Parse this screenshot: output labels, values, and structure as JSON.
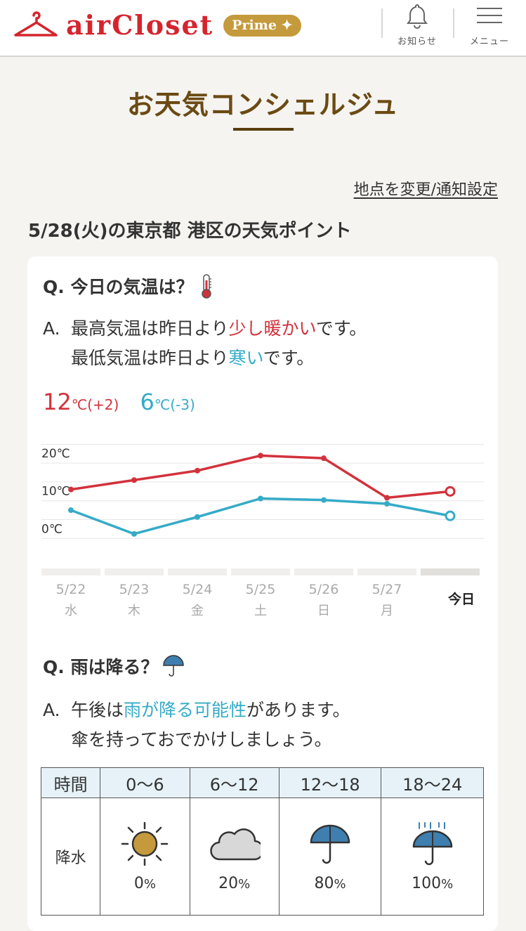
{
  "header": {
    "brand": "airCloset",
    "badge": "Prime",
    "notice_label": "お知らせ",
    "menu_label": "メニュー"
  },
  "page": {
    "title": "お天気コンシェルジュ",
    "change_link": "地点を変更/通知設定",
    "point_title": "5/28(火)の東京都 港区の天気ポイント"
  },
  "temperature": {
    "question": "Q. 今日の気温は？",
    "a_label": "A.",
    "line1_pre": "最高気温は昨日より",
    "line1_hl": "少し暖かい",
    "line1_post": "です。",
    "line2_pre": "最低気温は昨日より",
    "line2_hl": "寒い",
    "line2_post": "です。",
    "high_value": "12",
    "high_unit": "℃(+2)",
    "low_value": "6",
    "low_unit": "℃(-3)"
  },
  "chart_data": {
    "type": "line",
    "ylim": [
      -2,
      26
    ],
    "y_ticks": [
      "20℃",
      "10℃",
      "0℃"
    ],
    "y_tick_values": [
      20,
      10,
      0
    ],
    "categories": [
      {
        "date": "5/22",
        "day": "水"
      },
      {
        "date": "5/23",
        "day": "木"
      },
      {
        "date": "5/24",
        "day": "金"
      },
      {
        "date": "5/25",
        "day": "土"
      },
      {
        "date": "5/26",
        "day": "日"
      },
      {
        "date": "5/27",
        "day": "月"
      },
      {
        "date": "今日",
        "day": ""
      }
    ],
    "series": [
      {
        "name": "最高気温",
        "color": "#d2323c",
        "values": [
          13,
          15.5,
          18,
          22,
          21.3,
          10.8,
          12.5
        ]
      },
      {
        "name": "最低気温",
        "color": "#35abc7",
        "values": [
          7.5,
          1.2,
          5.7,
          10.6,
          10.2,
          9.2,
          6
        ]
      }
    ]
  },
  "rain": {
    "question": "Q. 雨は降る？",
    "a_label": "A.",
    "line1_pre": "午後は",
    "line1_hl": "雨が降る可能性",
    "line1_post": "があります。",
    "line2": "傘を持っておでかけしましょう。",
    "table": {
      "time_header": "時間",
      "row_label": "降水",
      "slots": [
        {
          "time": "0〜6",
          "icon": "sun-icon",
          "percent": "0",
          "unit": "%"
        },
        {
          "time": "6〜12",
          "icon": "cloud-icon",
          "percent": "20",
          "unit": "%"
        },
        {
          "time": "12〜18",
          "icon": "umbrella-icon",
          "percent": "80",
          "unit": "%"
        },
        {
          "time": "18〜24",
          "icon": "umbrella-rain-icon",
          "percent": "100",
          "unit": "%"
        }
      ]
    }
  }
}
